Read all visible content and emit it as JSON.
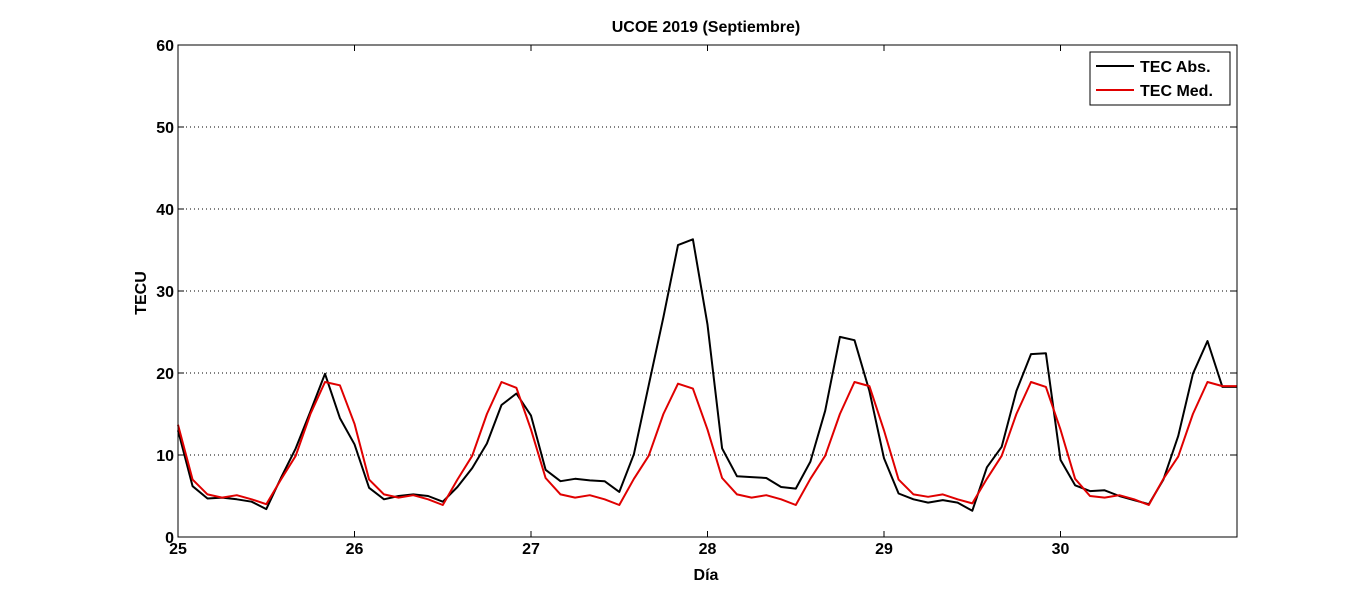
{
  "chart_data": {
    "type": "line",
    "title": "UCOE 2019 (Septiembre)",
    "xlabel": "Día",
    "ylabel": "TECU",
    "xlim": [
      25,
      31
    ],
    "ylim": [
      0,
      60
    ],
    "xticks": [
      25,
      26,
      27,
      28,
      29,
      30
    ],
    "yticks": [
      0,
      10,
      20,
      30,
      40,
      50,
      60
    ],
    "grid": "y-dotted",
    "legend_position": "top-right",
    "series": [
      {
        "name": "TEC Abs.",
        "color": "#000000",
        "x": [
          25.0,
          25.083,
          25.167,
          25.25,
          25.333,
          25.417,
          25.5,
          25.583,
          25.667,
          25.75,
          25.833,
          25.917,
          26.0,
          26.083,
          26.167,
          26.25,
          26.333,
          26.417,
          26.5,
          26.583,
          26.667,
          26.75,
          26.833,
          26.917,
          27.0,
          27.083,
          27.167,
          27.25,
          27.333,
          27.417,
          27.5,
          27.583,
          27.667,
          27.75,
          27.833,
          27.917,
          28.0,
          28.083,
          28.167,
          28.25,
          28.333,
          28.417,
          28.5,
          28.583,
          28.667,
          28.75,
          28.833,
          28.917,
          29.0,
          29.083,
          29.167,
          29.25,
          29.333,
          29.417,
          29.5,
          29.583,
          29.667,
          29.75,
          29.833,
          29.917,
          30.0,
          30.083,
          30.167,
          30.25,
          30.333,
          30.417,
          30.5,
          30.583,
          30.667,
          30.75,
          30.833,
          30.917,
          31.0
        ],
        "values": [
          13.0,
          6.2,
          4.7,
          4.8,
          4.6,
          4.3,
          3.4,
          7.2,
          10.8,
          15.3,
          19.9,
          14.5,
          11.3,
          6.0,
          4.6,
          5.0,
          5.2,
          5.0,
          4.3,
          6.1,
          8.4,
          11.4,
          16.1,
          17.5,
          14.8,
          8.2,
          6.8,
          7.1,
          6.9,
          6.8,
          5.5,
          10.1,
          18.5,
          26.8,
          35.6,
          36.3,
          25.9,
          10.8,
          7.4,
          7.3,
          7.2,
          6.1,
          5.9,
          9.2,
          15.4,
          24.4,
          24.0,
          17.8,
          9.6,
          5.3,
          4.6,
          4.2,
          4.5,
          4.2,
          3.2,
          8.5,
          11.0,
          17.8,
          22.3,
          22.4,
          9.4,
          6.3,
          5.6,
          5.7,
          5.0,
          4.5,
          4.0,
          7.0,
          12.3,
          19.9,
          23.9,
          18.3,
          18.3
        ]
      },
      {
        "name": "TEC Med.",
        "color": "#e00000",
        "x": [
          25.0,
          25.083,
          25.167,
          25.25,
          25.333,
          25.417,
          25.5,
          25.583,
          25.667,
          25.75,
          25.833,
          25.917,
          26.0,
          26.083,
          26.167,
          26.25,
          26.333,
          26.417,
          26.5,
          26.583,
          26.667,
          26.75,
          26.833,
          26.917,
          27.0,
          27.083,
          27.167,
          27.25,
          27.333,
          27.417,
          27.5,
          27.583,
          27.667,
          27.75,
          27.833,
          27.917,
          28.0,
          28.083,
          28.167,
          28.25,
          28.333,
          28.417,
          28.5,
          28.583,
          28.667,
          28.75,
          28.833,
          28.917,
          29.0,
          29.083,
          29.167,
          29.25,
          29.333,
          29.417,
          29.5,
          29.583,
          29.667,
          29.75,
          29.833,
          29.917,
          30.0,
          30.083,
          30.167,
          30.25,
          30.333,
          30.417,
          30.5,
          30.583,
          30.667,
          30.75,
          30.833,
          30.917,
          31.0
        ],
        "values": [
          13.7,
          7.0,
          5.2,
          4.8,
          5.1,
          4.6,
          4.0,
          7.0,
          9.9,
          15.0,
          18.9,
          18.5,
          13.8,
          7.0,
          5.2,
          4.8,
          5.1,
          4.6,
          3.9,
          7.0,
          9.9,
          15.0,
          18.9,
          18.2,
          13.1,
          7.2,
          5.2,
          4.8,
          5.1,
          4.6,
          3.9,
          7.1,
          9.9,
          15.0,
          18.7,
          18.1,
          13.1,
          7.2,
          5.2,
          4.8,
          5.1,
          4.6,
          3.9,
          7.1,
          9.9,
          15.0,
          18.9,
          18.4,
          13.0,
          7.0,
          5.2,
          4.9,
          5.2,
          4.6,
          4.1,
          7.1,
          9.9,
          15.0,
          18.9,
          18.3,
          13.1,
          7.1,
          5.0,
          4.8,
          5.1,
          4.6,
          3.9,
          7.1,
          9.8,
          15.0,
          18.9,
          18.4,
          18.4
        ]
      }
    ]
  }
}
